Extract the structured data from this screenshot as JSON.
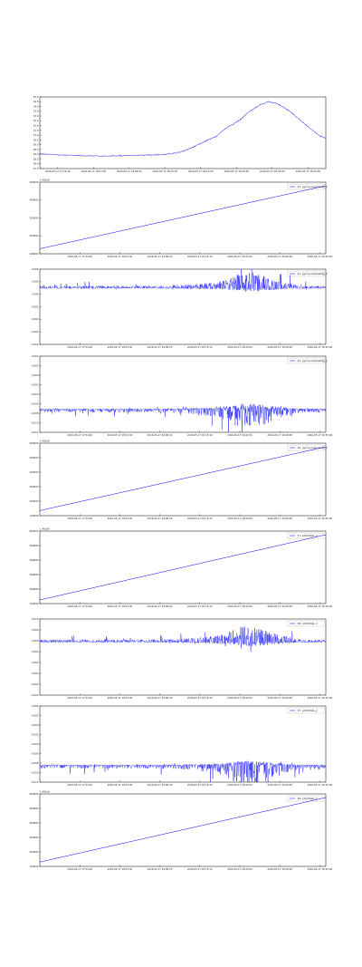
{
  "chart_data": [
    {
      "type": "line",
      "kind": "temperature",
      "legend": [],
      "offset": "",
      "ylim": [
        27.5,
        35.0
      ],
      "yticks": [
        "35.0",
        "34.5",
        "34.0",
        "33.5",
        "33.0",
        "32.5",
        "32.0",
        "31.5",
        "31.0",
        "30.5",
        "30.0",
        "29.5",
        "29.0",
        "28.5",
        "28.0",
        "27.5"
      ],
      "xticks": [
        "2016-05-17 17:54:40",
        "2016-05-17 18:01:30",
        "2016-05-17 18:08:20",
        "2016-05-17 18:15:10",
        "2016-05-17 18:22:00",
        "2016-05-17 18:28:50",
        "2016-05-17 18:35:40",
        "2016-05-17 18:42:30"
      ],
      "series": [
        {
          "points": [
            [
              0,
              29.05
            ],
            [
              0.05,
              28.95
            ],
            [
              0.1,
              28.9
            ],
            [
              0.16,
              28.85
            ],
            [
              0.22,
              28.8
            ],
            [
              0.3,
              28.85
            ],
            [
              0.36,
              28.9
            ],
            [
              0.42,
              28.95
            ],
            [
              0.46,
              29.05
            ],
            [
              0.5,
              29.3
            ],
            [
              0.54,
              29.8
            ],
            [
              0.58,
              30.4
            ],
            [
              0.62,
              30.9
            ],
            [
              0.64,
              31.5
            ],
            [
              0.66,
              31.9
            ],
            [
              0.7,
              32.6
            ],
            [
              0.73,
              33.4
            ],
            [
              0.77,
              34.2
            ],
            [
              0.8,
              34.5
            ],
            [
              0.83,
              34.3
            ],
            [
              0.87,
              33.6
            ],
            [
              0.91,
              32.6
            ],
            [
              0.95,
              31.6
            ],
            [
              0.98,
              30.9
            ],
            [
              1.0,
              30.7
            ]
          ]
        }
      ]
    },
    {
      "type": "line",
      "kind": "ramp",
      "legend": [
        "'13. gyroscopeQuality_a'"
      ],
      "offset": "1.462e9",
      "yticks": [
        "500000",
        "400000",
        "300000",
        "200000",
        "100000"
      ],
      "xticks": [
        "2016-05-17 17:54:40",
        "2016-05-17 18:01:30",
        "2016-05-17 18:08:20",
        "2016-05-17 18:15:10",
        "2016-05-17 18:22:00",
        "2016-05-17 18:28:50",
        "2016-05-17 18:35:40"
      ],
      "series": [
        {
          "points": [
            [
              0,
              0.07
            ],
            [
              1,
              0.95
            ]
          ]
        }
      ]
    },
    {
      "type": "line",
      "kind": "noise",
      "legend": [
        "'11. gyroscopeQuality_x'"
      ],
      "offset": "",
      "yticks": [
        "0.008",
        "0.006",
        "0.004",
        "0.002",
        "0.000",
        "-0.002",
        "-0.004"
      ],
      "xticks": [
        "2016-05-17 17:54:40",
        "2016-05-17 18:01:30",
        "2016-05-17 18:08:20",
        "2016-05-17 18:15:10",
        "2016-05-17 18:22:00",
        "2016-05-17 18:28:50",
        "2016-05-17 18:35:40"
      ],
      "series": [
        {
          "baseline": 0.25,
          "amp_up": 0.7,
          "amp_down": 0.1,
          "seed": 3
        }
      ]
    },
    {
      "type": "line",
      "kind": "noise",
      "legend": [
        "'12. gyroscopeQuality_y'"
      ],
      "offset": "",
      "yticks": [
        "0.004",
        "0.002",
        "0.000",
        "-0.002",
        "-0.004",
        "-0.006",
        "-0.008",
        "-0.010",
        "-0.012"
      ],
      "xticks": [
        "2016-05-17 17:54:40",
        "2016-05-17 18:01:30",
        "2016-05-17 18:08:20",
        "2016-05-17 18:15:10",
        "2016-05-17 18:22:00",
        "2016-05-17 18:28:50",
        "2016-05-17 18:35:40"
      ],
      "series": [
        {
          "baseline": 0.7,
          "amp_up": 0.25,
          "amp_down": 0.55,
          "seed": 7
        }
      ]
    },
    {
      "type": "line",
      "kind": "ramp",
      "legend": [
        "'16. gyroscopeQuality_z'"
      ],
      "offset": "1.462e9",
      "yticks": [
        "600000",
        "500000",
        "400000",
        "300000",
        "200000",
        "100000"
      ],
      "xticks": [
        "2016-05-17 17:54:40",
        "2016-05-17 18:01:30",
        "2016-05-17 18:08:20",
        "2016-05-17 18:15:10",
        "2016-05-17 18:22:00",
        "2016-05-17 18:28:50",
        "2016-05-17 18:35:40"
      ],
      "series": [
        {
          "points": [
            [
              0,
              0.07
            ],
            [
              1,
              0.95
            ]
          ]
        }
      ]
    },
    {
      "type": "line",
      "kind": "ramp",
      "legend": [
        "'17. pitchRate_a'"
      ],
      "offset": "1.462e9",
      "yticks": [
        "600000",
        "500000",
        "400000",
        "300000",
        "200000",
        "100000"
      ],
      "xticks": [
        "2016-05-17 17:54:40",
        "2016-05-17 18:01:30",
        "2016-05-17 18:08:20",
        "2016-05-17 18:15:10",
        "2016-05-17 18:22:00",
        "2016-05-17 18:28:50",
        "2016-05-17 18:35:40"
      ],
      "series": [
        {
          "points": [
            [
              0,
              0.05
            ],
            [
              1,
              0.95
            ]
          ]
        }
      ]
    },
    {
      "type": "line",
      "kind": "noise",
      "legend": [
        "'18. pitchRate_x'"
      ],
      "offset": "",
      "yticks": [
        "0.010",
        "0.008",
        "0.006",
        "0.004",
        "0.002",
        "0.000",
        "-0.002",
        "-0.004"
      ],
      "xticks": [
        "2016-05-17 17:54:40",
        "2016-05-17 18:01:30",
        "2016-05-17 18:08:20",
        "2016-05-17 18:15:10",
        "2016-05-17 18:22:00",
        "2016-05-17 18:28:50",
        "2016-05-17 18:35:40"
      ],
      "series": [
        {
          "baseline": 0.3,
          "amp_up": 0.7,
          "amp_down": 0.12,
          "seed": 11
        }
      ]
    },
    {
      "type": "line",
      "kind": "noise",
      "legend": [
        "'17. pitchRate_y'"
      ],
      "offset": "",
      "yticks": [
        "0.004",
        "0.002",
        "0.000",
        "-0.002",
        "-0.004",
        "-0.006",
        "-0.008",
        "-0.010",
        "-0.012"
      ],
      "xticks": [
        "2016-05-17 17:54:40",
        "2016-05-17 18:01:30",
        "2016-05-17 18:08:20",
        "2016-05-17 18:15:10",
        "2016-05-17 18:22:00",
        "2016-05-17 18:28:50",
        "2016-05-17 18:35:40"
      ],
      "series": [
        {
          "baseline": 0.78,
          "amp_up": 0.2,
          "amp_down": 0.6,
          "seed": 19
        }
      ]
    },
    {
      "type": "line",
      "kind": "ramp",
      "legend": [
        "'20. pitchRate_z'"
      ],
      "offset": "1.462e9",
      "yticks": [
        "600000",
        "500000",
        "400000",
        "300000",
        "200000",
        "100000"
      ],
      "xticks": [
        "2016-05-17 17:54:40",
        "2016-05-17 18:01:30",
        "2016-05-17 18:08:20",
        "2016-05-17 18:15:10",
        "2016-05-17 18:22:00",
        "2016-05-17 18:28:50",
        "2016-05-17 18:35:40"
      ],
      "series": [
        {
          "points": [
            [
              0,
              0.06
            ],
            [
              1,
              0.95
            ]
          ]
        }
      ]
    }
  ],
  "colors": {
    "line": "#0000ff",
    "axis": "#000000",
    "background": "#ffffff"
  }
}
